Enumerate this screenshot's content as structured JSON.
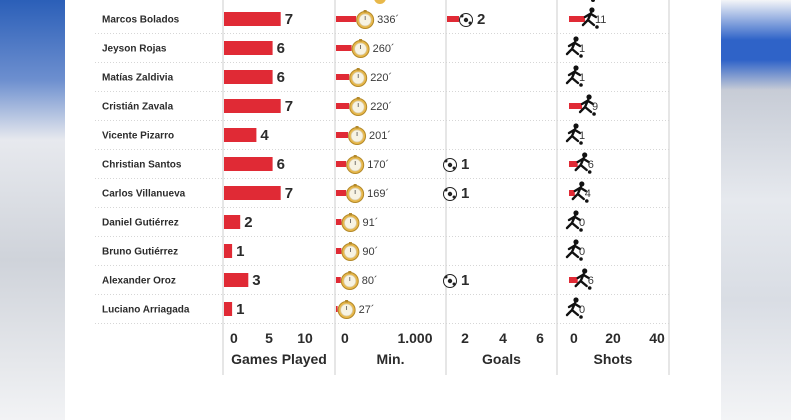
{
  "chart_data": {
    "type": "bar",
    "categories": [
      "Marcos Bolados",
      "Jeyson Rojas",
      "Matías Zaldivia",
      "Cristián Zavala",
      "Vicente Pizarro",
      "Christian Santos",
      "Carlos Villanueva",
      "Daniel Gutiérrez",
      "Bruno Gutiérrez",
      "Alexander Oroz",
      "Luciano Arriagada"
    ],
    "panels": [
      {
        "key": "games",
        "xlabel": "Games Played",
        "ticks": [
          "0",
          "5",
          "10"
        ],
        "xlim": [
          0,
          12
        ],
        "values": [
          7,
          6,
          6,
          7,
          4,
          6,
          7,
          2,
          1,
          3,
          1
        ],
        "labels": [
          "7",
          "6",
          "6",
          "7",
          "4",
          "6",
          "7",
          "2",
          "1",
          "3",
          "1"
        ]
      },
      {
        "key": "minutes",
        "xlabel": "Min.",
        "ticks": [
          "0",
          "1.000"
        ],
        "xlim": [
          0,
          1000
        ],
        "values": [
          336,
          260,
          220,
          220,
          201,
          170,
          169,
          91,
          90,
          80,
          27
        ],
        "labels": [
          "336´",
          "260´",
          "220´",
          "220´",
          "201´",
          "170´",
          "169´",
          "91´",
          "90´",
          "80´",
          "27´"
        ]
      },
      {
        "key": "goals",
        "xlabel": "Goals",
        "ticks": [
          "2",
          "4",
          "6"
        ],
        "xlim": [
          0,
          6
        ],
        "values": [
          2,
          null,
          null,
          null,
          null,
          1,
          1,
          null,
          null,
          1,
          null
        ],
        "labels": [
          "2",
          "",
          "",
          "",
          "",
          "1",
          "1",
          "",
          "",
          "1",
          ""
        ]
      },
      {
        "key": "shots",
        "xlabel": "Shots",
        "ticks": [
          "0",
          "20",
          "40"
        ],
        "xlim": [
          0,
          40
        ],
        "values": [
          11,
          1,
          1,
          9,
          1,
          6,
          4,
          0,
          0,
          6,
          0
        ],
        "labels": [
          "11",
          "1",
          "1",
          "9",
          "1",
          "6",
          "4",
          "0",
          "0",
          "6",
          "0"
        ]
      }
    ],
    "colors": {
      "bar": "#e02a35",
      "text": "#2b2b2b",
      "grid": "#cccccc",
      "clock": "#e8b84a"
    },
    "icons": {
      "minutes": "stopwatch-icon",
      "goals": "soccer-ball-icon",
      "shots": "kicking-player-icon"
    }
  }
}
